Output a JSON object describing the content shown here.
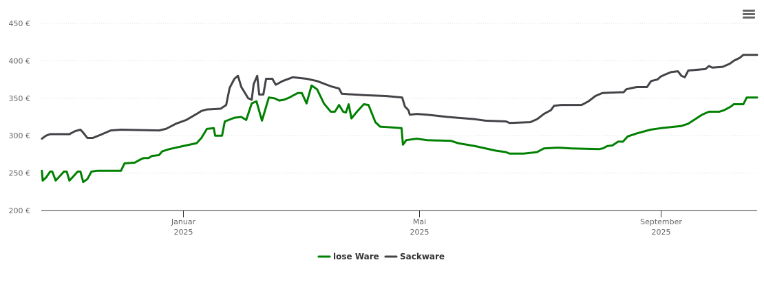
{
  "chart_data": {
    "type": "line",
    "title": "",
    "xlabel": "",
    "ylabel": "",
    "x_unit": "days since 2025-01-01",
    "xlim": [
      -72,
      292
    ],
    "ylim": [
      200,
      450
    ],
    "yticks": [
      200,
      250,
      300,
      350,
      400,
      450
    ],
    "ytick_labels": [
      "200 €",
      "250 €",
      "300 €",
      "350 €",
      "400 €",
      "450 €"
    ],
    "xticks": [
      {
        "x": 0,
        "label": "Januar",
        "sub": "2025"
      },
      {
        "x": 120,
        "label": "Mai",
        "sub": "2025"
      },
      {
        "x": 243,
        "label": "September",
        "sub": "2025"
      }
    ],
    "grid": true,
    "legend_position": "bottom-center",
    "series": [
      {
        "name": "lose Ware",
        "color": "#008000",
        "points": [
          [
            -71.7,
            253
          ],
          [
            -71.3,
            240
          ],
          [
            -69.6,
            244
          ],
          [
            -67.5,
            252
          ],
          [
            -66.4,
            252
          ],
          [
            -64.7,
            240
          ],
          [
            -62.6,
            246
          ],
          [
            -60.5,
            252
          ],
          [
            -59.1,
            252
          ],
          [
            -57.7,
            240
          ],
          [
            -55.6,
            246
          ],
          [
            -53.5,
            252
          ],
          [
            -52.1,
            252
          ],
          [
            -50.7,
            238
          ],
          [
            -48.6,
            242
          ],
          [
            -46.5,
            252
          ],
          [
            -43.7,
            253
          ],
          [
            -31.5,
            253
          ],
          [
            -29.7,
            263
          ],
          [
            -24.5,
            264
          ],
          [
            -21.7,
            268
          ],
          [
            -19.9,
            270
          ],
          [
            -17.5,
            270
          ],
          [
            -15.7,
            273
          ],
          [
            -12.2,
            274
          ],
          [
            -10.5,
            279
          ],
          [
            -7,
            282
          ],
          [
            0,
            286
          ],
          [
            7,
            290
          ],
          [
            9.4,
            297
          ],
          [
            12.2,
            309
          ],
          [
            15.7,
            310
          ],
          [
            16.4,
            300
          ],
          [
            19.9,
            300
          ],
          [
            21.3,
            319
          ],
          [
            26.2,
            324
          ],
          [
            29.7,
            325
          ],
          [
            32.2,
            321
          ],
          [
            35,
            343
          ],
          [
            37.4,
            346
          ],
          [
            40.2,
            320
          ],
          [
            43.7,
            351
          ],
          [
            46.5,
            350
          ],
          [
            49,
            347
          ],
          [
            51.4,
            348
          ],
          [
            54.2,
            351
          ],
          [
            58.4,
            357
          ],
          [
            60.5,
            357
          ],
          [
            62.9,
            343
          ],
          [
            65.4,
            367
          ],
          [
            68.2,
            362
          ],
          [
            71.7,
            343
          ],
          [
            75.2,
            332
          ],
          [
            77.3,
            332
          ],
          [
            79.4,
            341
          ],
          [
            81.5,
            332
          ],
          [
            82.9,
            331
          ],
          [
            84.3,
            342
          ],
          [
            85.7,
            323
          ],
          [
            88.5,
            332
          ],
          [
            92,
            342
          ],
          [
            94.4,
            341
          ],
          [
            97.9,
            318
          ],
          [
            100.3,
            312
          ],
          [
            106.6,
            311
          ],
          [
            111.2,
            310
          ],
          [
            111.9,
            288
          ],
          [
            113.6,
            294
          ],
          [
            118.9,
            296
          ],
          [
            124.1,
            294
          ],
          [
            136.4,
            293
          ],
          [
            139.9,
            290
          ],
          [
            148.6,
            286
          ],
          [
            159.1,
            280
          ],
          [
            164.3,
            278
          ],
          [
            166.1,
            276
          ],
          [
            173.1,
            276
          ],
          [
            180.1,
            278
          ],
          [
            183.6,
            283
          ],
          [
            190.6,
            284
          ],
          [
            197.6,
            283
          ],
          [
            211.5,
            282
          ],
          [
            213.6,
            283
          ],
          [
            215.7,
            286
          ],
          [
            218.5,
            287
          ],
          [
            221.3,
            292
          ],
          [
            223.8,
            292
          ],
          [
            226.2,
            299
          ],
          [
            230.8,
            303
          ],
          [
            237.8,
            308
          ],
          [
            243,
            310
          ],
          [
            246.5,
            311
          ],
          [
            253.5,
            313
          ],
          [
            257,
            316
          ],
          [
            260.5,
            322
          ],
          [
            264,
            328
          ],
          [
            267.5,
            332
          ],
          [
            272.7,
            332
          ],
          [
            275.2,
            334
          ],
          [
            278.7,
            339
          ],
          [
            280.1,
            342
          ],
          [
            285,
            342
          ],
          [
            286.7,
            351
          ],
          [
            292,
            351
          ]
        ]
      },
      {
        "name": "Sackware",
        "color": "#434348",
        "points": [
          [
            -71.7,
            296
          ],
          [
            -69.6,
            300
          ],
          [
            -67.5,
            302
          ],
          [
            -57.7,
            302
          ],
          [
            -54.9,
            306
          ],
          [
            -52.1,
            308
          ],
          [
            -50.7,
            304
          ],
          [
            -48.6,
            297
          ],
          [
            -45.8,
            297
          ],
          [
            -42,
            301
          ],
          [
            -36.7,
            307
          ],
          [
            -31.5,
            308
          ],
          [
            -12.2,
            307
          ],
          [
            -8.7,
            309
          ],
          [
            -3.5,
            316
          ],
          [
            1.7,
            321
          ],
          [
            7,
            329
          ],
          [
            9.4,
            333
          ],
          [
            12.2,
            335
          ],
          [
            19.2,
            336
          ],
          [
            22,
            341
          ],
          [
            23.8,
            364
          ],
          [
            26.2,
            376
          ],
          [
            28,
            380
          ],
          [
            29.7,
            365
          ],
          [
            33.2,
            350
          ],
          [
            35,
            348
          ],
          [
            36,
            369
          ],
          [
            37.8,
            380
          ],
          [
            38.8,
            355
          ],
          [
            40.9,
            355
          ],
          [
            42.3,
            376
          ],
          [
            45.5,
            376
          ],
          [
            47.2,
            368
          ],
          [
            50.7,
            373
          ],
          [
            55.9,
            378
          ],
          [
            62.9,
            376
          ],
          [
            68.2,
            373
          ],
          [
            75.2,
            366
          ],
          [
            79.4,
            363
          ],
          [
            80.8,
            356
          ],
          [
            92.7,
            354
          ],
          [
            103.1,
            353
          ],
          [
            111.5,
            351
          ],
          [
            112.9,
            339
          ],
          [
            114.7,
            334
          ],
          [
            115.4,
            328
          ],
          [
            118.9,
            329
          ],
          [
            124.1,
            328
          ],
          [
            134.6,
            325
          ],
          [
            148.6,
            322
          ],
          [
            153.8,
            320
          ],
          [
            164.3,
            319
          ],
          [
            166.1,
            317
          ],
          [
            176.6,
            318
          ],
          [
            180.1,
            322
          ],
          [
            183.6,
            329
          ],
          [
            187.1,
            334
          ],
          [
            188.8,
            340
          ],
          [
            192.3,
            341
          ],
          [
            202.8,
            341
          ],
          [
            206.3,
            346
          ],
          [
            209.8,
            353
          ],
          [
            213.3,
            357
          ],
          [
            222,
            358
          ],
          [
            224.1,
            358
          ],
          [
            225.5,
            362
          ],
          [
            230.8,
            365
          ],
          [
            236,
            365
          ],
          [
            238.1,
            373
          ],
          [
            241.3,
            375
          ],
          [
            243,
            379
          ],
          [
            245.5,
            382
          ],
          [
            248.3,
            385
          ],
          [
            251.7,
            386
          ],
          [
            253.5,
            380
          ],
          [
            255.2,
            378
          ],
          [
            257,
            387
          ],
          [
            265.7,
            389
          ],
          [
            267.5,
            393
          ],
          [
            269.2,
            391
          ],
          [
            274.5,
            392
          ],
          [
            278,
            396
          ],
          [
            280.1,
            400
          ],
          [
            283.2,
            404
          ],
          [
            285,
            408
          ],
          [
            292,
            408
          ]
        ]
      }
    ]
  }
}
